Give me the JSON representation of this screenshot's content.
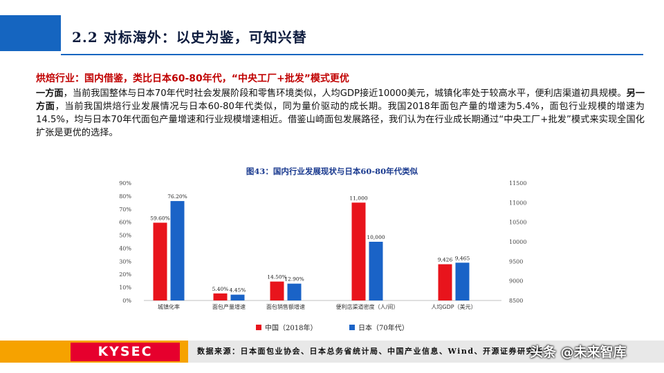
{
  "header": {
    "title": "2.2 对标海外：以史为鉴，可知兴替"
  },
  "content": {
    "heading": "烘焙行业：国内借鉴，类比日本60-80年代，“中央工厂+批发”模式更优",
    "para_lead1": "一方面",
    "para_text1": "，当前我国整体与日本70年代时社会发展阶段和零售环境类似，人均GDP接近10000美元，城镇化率处于较高水平，便利店渠道初具规模。",
    "para_lead2": "另一方面",
    "para_text2": "，当前我国烘焙行业发展情况与日本60-80年代类似，同为量价驱动的成长期。我国2018年面包产量的增速为5.4%，面包行业规模的增速为14.5%，均与日本70年代面包产量增速和行业规模增速相近。借鉴山崎面包发展路径，我们认为在行业成长期通过“中央工厂+批发”模式来实现全国化扩张是更优的选择。"
  },
  "chart_data": {
    "type": "bar",
    "title": "图43：国内行业发展现状与日本60-80年代类似",
    "categories": [
      "城镇化率",
      "面包产量增速",
      "面包销售额增速",
      "便利店渠道密度（人/间）",
      "人均GDP（美元）"
    ],
    "series": [
      {
        "name": "中国（2018年）",
        "color": "#e8141c",
        "values": [
          59.6,
          5.4,
          14.5,
          11000,
          9426
        ],
        "labels": [
          "59.60%",
          "5.40%",
          "14.50%",
          "11,000",
          "9,426"
        ]
      },
      {
        "name": "日本（70年代）",
        "color": "#1a63c7",
        "values": [
          76.2,
          4.45,
          12.9,
          10000,
          9465
        ],
        "labels": [
          "76.20%",
          "4.45%",
          "12.90%",
          "10,000",
          "9,465"
        ]
      }
    ],
    "left_axis": {
      "range": [
        0,
        90
      ],
      "ticks": [
        "0%",
        "10%",
        "20%",
        "30%",
        "40%",
        "50%",
        "60%",
        "70%",
        "80%",
        "90%"
      ],
      "categories": [
        0,
        1,
        2
      ]
    },
    "right_axis": {
      "range": [
        8500,
        11500
      ],
      "ticks": [
        "8500",
        "9000",
        "9500",
        "10000",
        "10500",
        "11000",
        "11500"
      ],
      "categories": [
        3,
        4
      ]
    },
    "legend_position": "bottom",
    "grid": false
  },
  "footer": {
    "logo": "KYSEC",
    "source": "数据来源：日本面包业协会、日本总务省统计局、中国产业信息、Wind、开源证券研究所",
    "watermark": "头条 @未来智库"
  },
  "colors": {
    "accent_blue": "#1565c0",
    "heading_red": "#c00000",
    "footer_orange": "#f6a200",
    "logo_red": "#e6002d"
  }
}
